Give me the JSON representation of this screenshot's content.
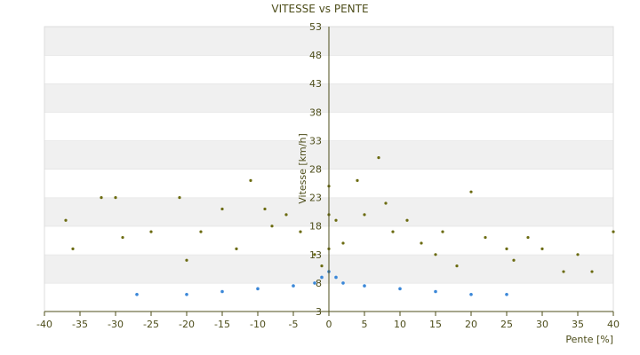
{
  "chart_data": {
    "type": "scatter",
    "title": "VITESSE vs PENTE",
    "xlabel": "Pente [%]",
    "ylabel": "Vitesse [km/h]",
    "xlim": [
      -40,
      40
    ],
    "ylim": [
      3,
      53
    ],
    "x_ticks": [
      "-40",
      "-35",
      "-30",
      "-25",
      "-20",
      "-15",
      "-10",
      "-5",
      "0",
      "5",
      "10",
      "15",
      "20",
      "25",
      "30",
      "35",
      "40"
    ],
    "y_ticks": [
      "3",
      "8",
      "13",
      "18",
      "23",
      "28",
      "33",
      "38",
      "43",
      "48",
      "53"
    ],
    "grid": "horizontal, alternating bands",
    "legend": "none",
    "colors": {
      "series_upper": "#6b6b10",
      "series_lower": "#3a87d8",
      "band_light": "#f0f0f0",
      "band_white": "#ffffff",
      "axis": "#4d4d1a"
    },
    "series": [
      {
        "color": "#6b6b10",
        "approx_points": [
          [
            -37,
            19
          ],
          [
            -36,
            14
          ],
          [
            -32,
            23
          ],
          [
            -30,
            23
          ],
          [
            -29,
            16
          ],
          [
            -25,
            17
          ],
          [
            -21,
            23
          ],
          [
            -20,
            12
          ],
          [
            -18,
            17
          ],
          [
            -15,
            21
          ],
          [
            -13,
            14
          ],
          [
            -11,
            26
          ],
          [
            -9,
            21
          ],
          [
            -8,
            18
          ],
          [
            -6,
            20
          ],
          [
            -4,
            17
          ],
          [
            -2,
            13
          ],
          [
            -1,
            11
          ],
          [
            0,
            25
          ],
          [
            0,
            20
          ],
          [
            0,
            14
          ],
          [
            1,
            19
          ],
          [
            2,
            15
          ],
          [
            4,
            26
          ],
          [
            5,
            20
          ],
          [
            7,
            30
          ],
          [
            8,
            22
          ],
          [
            9,
            17
          ],
          [
            11,
            19
          ],
          [
            13,
            15
          ],
          [
            15,
            13
          ],
          [
            16,
            17
          ],
          [
            18,
            11
          ],
          [
            20,
            24
          ],
          [
            22,
            16
          ],
          [
            25,
            14
          ],
          [
            26,
            12
          ],
          [
            28,
            16
          ],
          [
            30,
            14
          ],
          [
            33,
            10
          ],
          [
            35,
            13
          ],
          [
            37,
            10
          ],
          [
            40,
            17
          ]
        ]
      },
      {
        "color": "#3a87d8",
        "approx_points": [
          [
            -27,
            6
          ],
          [
            -20,
            6
          ],
          [
            -15,
            6.5
          ],
          [
            -10,
            7
          ],
          [
            -5,
            7.5
          ],
          [
            -2,
            8
          ],
          [
            -1,
            9
          ],
          [
            0,
            10
          ],
          [
            1,
            9
          ],
          [
            2,
            8
          ],
          [
            5,
            7.5
          ],
          [
            10,
            7
          ],
          [
            15,
            6.5
          ],
          [
            20,
            6
          ],
          [
            25,
            6
          ]
        ]
      }
    ]
  }
}
